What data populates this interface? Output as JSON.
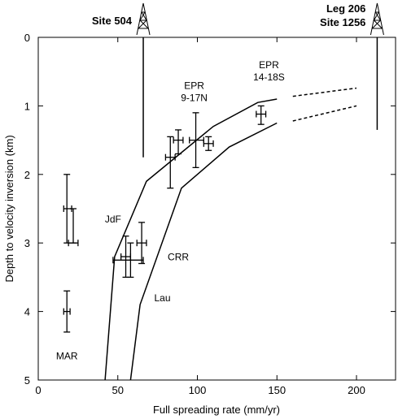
{
  "chart_data": {
    "type": "scatter",
    "xlabel": "Full spreading rate (mm/yr)",
    "ylabel": "Depth to velocity inversion (km)",
    "xlim": [
      0,
      225
    ],
    "ylim": [
      5,
      0
    ],
    "x_ticks": [
      "0",
      "50",
      "100",
      "150",
      "200"
    ],
    "y_ticks": [
      "0",
      "1",
      "2",
      "3",
      "4",
      "5"
    ],
    "grid": false,
    "points": [
      {
        "x": 18,
        "y": 2.5,
        "x_lo": 16,
        "x_hi": 21,
        "y_lo": 2.0,
        "y_hi": 3.0
      },
      {
        "x": 22,
        "y": 3.0,
        "x_lo": 19,
        "x_hi": 25,
        "y_lo": 2.5,
        "y_hi": 3.0
      },
      {
        "x": 18,
        "y": 4.0,
        "x_lo": 16,
        "x_hi": 20,
        "y_lo": 3.7,
        "y_hi": 4.3
      },
      {
        "x": 55,
        "y": 3.2,
        "x_lo": 52,
        "x_hi": 58,
        "y_lo": 2.9,
        "y_hi": 3.5
      },
      {
        "x": 58,
        "y": 3.25,
        "x_lo": 47,
        "x_hi": 66,
        "y_lo": 3.0,
        "y_hi": 3.5
      },
      {
        "x": 65,
        "y": 3.0,
        "x_lo": 62,
        "x_hi": 68,
        "y_lo": 2.7,
        "y_hi": 3.3
      },
      {
        "x": 83,
        "y": 1.75,
        "x_lo": 80,
        "x_hi": 86,
        "y_lo": 1.45,
        "y_hi": 2.2
      },
      {
        "x": 88,
        "y": 1.5,
        "x_lo": 85,
        "x_hi": 91,
        "y_lo": 1.35,
        "y_hi": 1.7
      },
      {
        "x": 99,
        "y": 1.5,
        "x_lo": 95,
        "x_hi": 104,
        "y_lo": 1.1,
        "y_hi": 1.9
      },
      {
        "x": 107,
        "y": 1.55,
        "x_lo": 104,
        "x_hi": 110,
        "y_lo": 1.45,
        "y_hi": 1.65
      },
      {
        "x": 140,
        "y": 1.12,
        "x_lo": 137,
        "x_hi": 143,
        "y_lo": 1.0,
        "y_hi": 1.27
      }
    ],
    "curves": [
      {
        "x": [
          42,
          48,
          68,
          110,
          138,
          150
        ],
        "y": [
          5.0,
          3.2,
          2.1,
          1.3,
          0.95,
          0.9
        ],
        "style": "solid"
      },
      {
        "x": [
          58,
          64,
          90,
          120,
          150
        ],
        "y": [
          5.0,
          3.9,
          2.2,
          1.6,
          1.25
        ],
        "style": "solid"
      },
      {
        "x": [
          160,
          200
        ],
        "y": [
          0.86,
          0.74
        ],
        "style": "dashed"
      },
      {
        "x": [
          160,
          200
        ],
        "y": [
          1.22,
          1.0
        ],
        "style": "dashed"
      }
    ],
    "sites": [
      {
        "label": "Site 504",
        "x": 66,
        "drill_depth": 1.75
      },
      {
        "label_lines": [
          "Leg 206",
          "Site 1256"
        ],
        "x": 213,
        "drill_depth": 1.35
      }
    ],
    "annotations": [
      {
        "text": "MAR",
        "x": 18,
        "y": 4.7
      },
      {
        "text": "JdF",
        "x": 47,
        "y": 2.7
      },
      {
        "text": "CRR",
        "x": 88,
        "y": 3.25
      },
      {
        "text": "Lau",
        "x": 78,
        "y": 3.85
      },
      {
        "lines": [
          "EPR",
          "9-17N"
        ],
        "x": 98,
        "y": 0.75
      },
      {
        "lines": [
          "EPR",
          "14-18S"
        ],
        "x": 145,
        "y": 0.45
      }
    ]
  }
}
